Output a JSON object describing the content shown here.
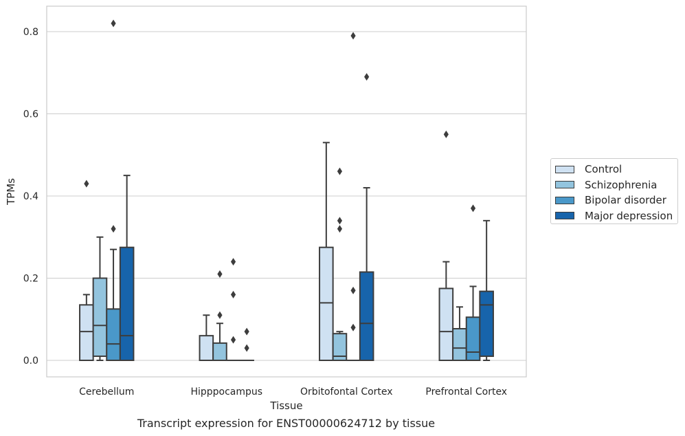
{
  "caption": "Transcript expression for ENST00000624712 by tissue",
  "colors": {
    "Control": "#cfe1f2",
    "Schizophrenia": "#93c4de",
    "Bipolar disorder": "#4a98c9",
    "Major depression": "#1764ab",
    "box_edge": "#3d3d3d",
    "grid": "#cccccc"
  },
  "legend": {
    "items": [
      "Control",
      "Schizophrenia",
      "Bipolar disorder",
      "Major depression"
    ],
    "placement": "center-right, outside plot"
  },
  "chart_data": {
    "type": "box",
    "xlabel": "Tissue",
    "ylabel": "TPMs",
    "ylim": [
      -0.04,
      0.86
    ],
    "yticks": [
      0.0,
      0.2,
      0.4,
      0.6,
      0.8
    ],
    "ytick_labels": [
      "0.0",
      "0.2",
      "0.4",
      "0.6",
      "0.8"
    ],
    "grid": "horizontal",
    "categories": [
      "Cerebellum",
      "Hipppocampus",
      "Orbitofontal Cortex",
      "Prefrontal Cortex"
    ],
    "series": [
      {
        "name": "Control",
        "boxes": [
          {
            "q1": 0,
            "median": 0.07,
            "q3": 0.135,
            "whislo": 0,
            "whishi": 0.16,
            "fliers": [
              0.43
            ]
          },
          {
            "q1": 0,
            "median": 0,
            "q3": 0.06,
            "whislo": 0,
            "whishi": 0.11,
            "fliers": []
          },
          {
            "q1": 0,
            "median": 0.14,
            "q3": 0.275,
            "whislo": 0,
            "whishi": 0.53,
            "fliers": []
          },
          {
            "q1": 0,
            "median": 0.07,
            "q3": 0.175,
            "whislo": 0,
            "whishi": 0.24,
            "fliers": [
              0.55
            ]
          }
        ]
      },
      {
        "name": "Schizophrenia",
        "boxes": [
          {
            "q1": 0.01,
            "median": 0.085,
            "q3": 0.2,
            "whislo": 0,
            "whishi": 0.3,
            "fliers": []
          },
          {
            "q1": 0,
            "median": 0,
            "q3": 0.042,
            "whislo": 0,
            "whishi": 0.09,
            "fliers": [
              0.11,
              0.21
            ]
          },
          {
            "q1": 0,
            "median": 0.01,
            "q3": 0.065,
            "whislo": 0,
            "whishi": 0.07,
            "fliers": [
              0.32,
              0.34,
              0.46
            ]
          },
          {
            "q1": 0,
            "median": 0.03,
            "q3": 0.077,
            "whislo": 0,
            "whishi": 0.13,
            "fliers": []
          }
        ]
      },
      {
        "name": "Bipolar disorder",
        "boxes": [
          {
            "q1": 0,
            "median": 0.04,
            "q3": 0.125,
            "whislo": 0,
            "whishi": 0.27,
            "fliers": [
              0.32,
              0.82
            ]
          },
          {
            "q1": 0,
            "median": 0,
            "q3": 0,
            "whislo": 0,
            "whishi": 0,
            "fliers": [
              0.05,
              0.16,
              0.24
            ]
          },
          {
            "q1": 0,
            "median": 0,
            "q3": 0,
            "whislo": 0,
            "whishi": 0,
            "fliers": [
              0.08,
              0.17,
              0.79
            ]
          },
          {
            "q1": 0,
            "median": 0.02,
            "q3": 0.105,
            "whislo": 0,
            "whishi": 0.18,
            "fliers": [
              0.37
            ]
          }
        ]
      },
      {
        "name": "Major depression",
        "boxes": [
          {
            "q1": 0,
            "median": 0.06,
            "q3": 0.275,
            "whislo": 0,
            "whishi": 0.45,
            "fliers": []
          },
          {
            "q1": 0,
            "median": 0,
            "q3": 0,
            "whislo": 0,
            "whishi": 0,
            "fliers": [
              0.03,
              0.07
            ]
          },
          {
            "q1": 0,
            "median": 0.09,
            "q3": 0.215,
            "whislo": 0,
            "whishi": 0.42,
            "fliers": [
              0.69
            ]
          },
          {
            "q1": 0.01,
            "median": 0.135,
            "q3": 0.168,
            "whislo": 0,
            "whishi": 0.34,
            "fliers": []
          }
        ]
      }
    ]
  }
}
